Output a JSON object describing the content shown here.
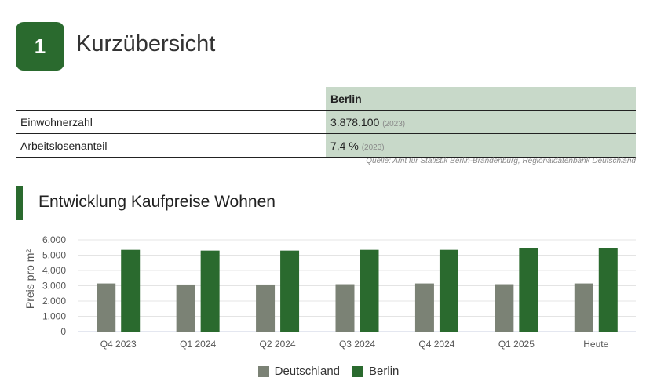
{
  "section": {
    "number": "1",
    "title": "Kurzübersicht"
  },
  "facts": {
    "header": "Berlin",
    "rows": [
      {
        "label": "Einwohnerzahl",
        "value": "3.878.100",
        "year": "(2023)"
      },
      {
        "label": "Arbeitslosenanteil",
        "value": "7,4 %",
        "year": "(2023)"
      }
    ],
    "source": "Quelle: Amt für Statistik Berlin-Brandenburg, Regionaldatenbank Deutschland"
  },
  "chart_title": "Entwicklung Kaufpreise Wohnen",
  "colors": {
    "accent": "#2a6a2e",
    "deutschland": "#7b8275",
    "berlin": "#2a6a2e"
  },
  "chart_data": {
    "type": "bar",
    "categories": [
      "Q4 2023",
      "Q1 2024",
      "Q2 2024",
      "Q3 2024",
      "Q4 2024",
      "Q1 2025",
      "Heute"
    ],
    "series": [
      {
        "name": "Deutschland",
        "values": [
          3150,
          3080,
          3080,
          3100,
          3150,
          3100,
          3150
        ]
      },
      {
        "name": "Berlin",
        "values": [
          5350,
          5300,
          5300,
          5350,
          5350,
          5450,
          5450
        ]
      }
    ],
    "ylabel": "Preis pro m²",
    "ylim": [
      0,
      6000
    ],
    "yticks": [
      "0",
      "1.000",
      "2.000",
      "3.000",
      "4.000",
      "5.000",
      "6.000"
    ],
    "grid": true,
    "legend": "bottom-center"
  }
}
